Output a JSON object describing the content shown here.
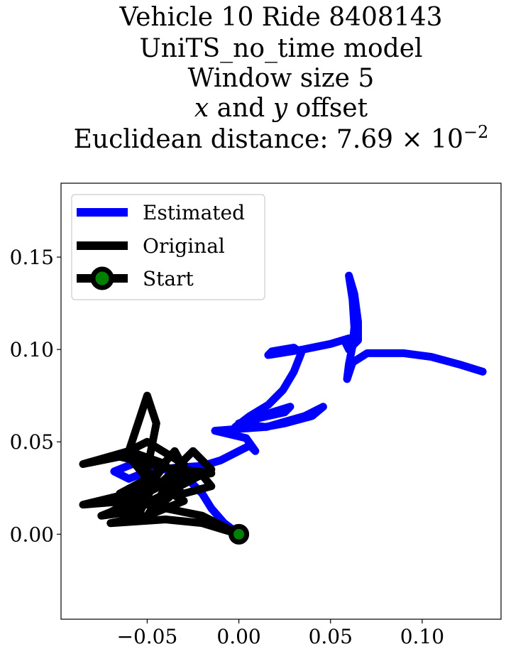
{
  "title_lines": [
    "Vehicle 10 Ride 8408143",
    "UniTS_no_time model",
    "Window size 5",
    "x and y offset",
    "Euclidean distance: 7.69 × 10−2"
  ],
  "title_parts": {
    "line4": {
      "x": "x",
      "and": " and ",
      "y": "y",
      "rest": " offset"
    },
    "line5": {
      "prefix": "Euclidean distance: 7.69 × 10",
      "exponent": "−2"
    }
  },
  "chart_data": {
    "type": "line",
    "title": "Vehicle 10 Ride 8408143 UniTS_no_time model Window size 5 x and y offset Euclidean distance: 7.69 × 10^-2",
    "xlabel": "",
    "ylabel": "",
    "xlim": [
      -0.097,
      0.143
    ],
    "ylim": [
      -0.046,
      0.19
    ],
    "x_ticks": [
      -0.05,
      0.0,
      0.05,
      0.1
    ],
    "x_tick_labels": [
      "−0.05",
      "0.00",
      "0.05",
      "0.10"
    ],
    "y_ticks": [
      0.0,
      0.05,
      0.1,
      0.15
    ],
    "y_tick_labels": [
      "0.00",
      "0.05",
      "0.10",
      "0.15"
    ],
    "grid": false,
    "legend_position": "upper-left",
    "series": [
      {
        "name": "Estimated",
        "color": "#0000ff",
        "points": [
          [
            0.0,
            0.0
          ],
          [
            -0.008,
            0.006
          ],
          [
            -0.015,
            0.014
          ],
          [
            -0.02,
            0.022
          ],
          [
            -0.028,
            0.03
          ],
          [
            -0.04,
            0.035
          ],
          [
            -0.058,
            0.038
          ],
          [
            -0.068,
            0.034
          ],
          [
            -0.06,
            0.03
          ],
          [
            -0.05,
            0.034
          ],
          [
            -0.035,
            0.036
          ],
          [
            -0.02,
            0.037
          ],
          [
            -0.01,
            0.04
          ],
          [
            0.0,
            0.045
          ],
          [
            0.006,
            0.048
          ],
          [
            0.009,
            0.045
          ],
          [
            0.004,
            0.052
          ],
          [
            -0.013,
            0.056
          ],
          [
            0.0,
            0.057
          ],
          [
            0.014,
            0.058
          ],
          [
            0.025,
            0.06
          ],
          [
            0.04,
            0.064
          ],
          [
            0.046,
            0.069
          ],
          [
            0.036,
            0.064
          ],
          [
            0.015,
            0.058
          ],
          [
            0.0,
            0.06
          ],
          [
            0.015,
            0.065
          ],
          [
            0.028,
            0.069
          ],
          [
            0.025,
            0.066
          ],
          [
            0.007,
            0.062
          ],
          [
            -0.002,
            0.058
          ],
          [
            0.006,
            0.064
          ],
          [
            0.016,
            0.07
          ],
          [
            0.024,
            0.078
          ],
          [
            0.03,
            0.088
          ],
          [
            0.034,
            0.098
          ],
          [
            0.03,
            0.101
          ],
          [
            0.018,
            0.099
          ],
          [
            0.016,
            0.097
          ],
          [
            0.035,
            0.1
          ],
          [
            0.05,
            0.103
          ],
          [
            0.06,
            0.106
          ],
          [
            0.058,
            0.104
          ],
          [
            0.06,
            0.1
          ],
          [
            0.065,
            0.105
          ],
          [
            0.065,
            0.115
          ],
          [
            0.063,
            0.13
          ],
          [
            0.06,
            0.14
          ],
          [
            0.062,
            0.127
          ],
          [
            0.063,
            0.112
          ],
          [
            0.062,
            0.102
          ],
          [
            0.06,
            0.092
          ],
          [
            0.059,
            0.084
          ],
          [
            0.062,
            0.093
          ],
          [
            0.07,
            0.098
          ],
          [
            0.09,
            0.098
          ],
          [
            0.105,
            0.096
          ],
          [
            0.12,
            0.092
          ],
          [
            0.133,
            0.088
          ]
        ]
      },
      {
        "name": "Original",
        "color": "#000000",
        "points": [
          [
            0.0,
            0.0
          ],
          [
            -0.02,
            0.01
          ],
          [
            -0.06,
            0.018
          ],
          [
            -0.085,
            0.016
          ],
          [
            -0.06,
            0.022
          ],
          [
            -0.035,
            0.03
          ],
          [
            -0.015,
            0.033
          ],
          [
            -0.04,
            0.036
          ],
          [
            -0.065,
            0.042
          ],
          [
            -0.085,
            0.038
          ],
          [
            -0.06,
            0.045
          ],
          [
            -0.05,
            0.075
          ],
          [
            -0.045,
            0.06
          ],
          [
            -0.05,
            0.035
          ],
          [
            -0.055,
            0.01
          ],
          [
            -0.07,
            0.012
          ],
          [
            -0.045,
            0.025
          ],
          [
            -0.025,
            0.045
          ],
          [
            -0.015,
            0.035
          ],
          [
            -0.04,
            0.022
          ],
          [
            -0.06,
            0.012
          ],
          [
            -0.075,
            0.01
          ],
          [
            -0.055,
            0.018
          ],
          [
            -0.04,
            0.038
          ],
          [
            -0.06,
            0.045
          ],
          [
            -0.05,
            0.05
          ],
          [
            -0.03,
            0.038
          ],
          [
            -0.05,
            0.022
          ],
          [
            -0.06,
            0.015
          ],
          [
            -0.05,
            0.028
          ],
          [
            -0.035,
            0.045
          ],
          [
            -0.03,
            0.036
          ],
          [
            -0.038,
            0.02
          ],
          [
            -0.05,
            0.01
          ],
          [
            -0.04,
            0.025
          ],
          [
            -0.02,
            0.032
          ],
          [
            -0.015,
            0.026
          ],
          [
            -0.03,
            0.022
          ],
          [
            -0.05,
            0.03
          ],
          [
            -0.065,
            0.022
          ],
          [
            -0.055,
            0.01
          ],
          [
            -0.045,
            0.03
          ],
          [
            -0.06,
            0.042
          ],
          [
            -0.05,
            0.03
          ],
          [
            -0.03,
            0.018
          ],
          [
            -0.05,
            0.01
          ],
          [
            -0.07,
            0.006
          ],
          [
            -0.04,
            0.008
          ],
          [
            -0.02,
            0.006
          ],
          [
            0.0,
            0.0
          ]
        ]
      },
      {
        "name": "Start",
        "color": "#008000",
        "points": [
          [
            0.0,
            0.0
          ]
        ]
      }
    ]
  }
}
